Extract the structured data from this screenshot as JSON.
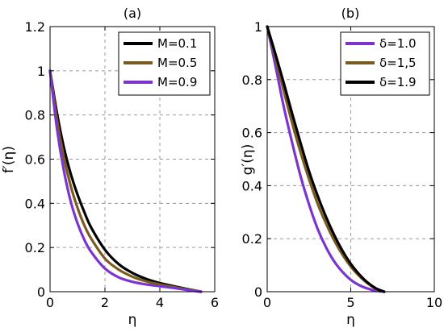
{
  "chart_data": [
    {
      "type": "line",
      "title": "(a)",
      "xlabel": "η",
      "ylabel": "f′(η)",
      "xlim": [
        0,
        6
      ],
      "ylim": [
        0,
        1.2
      ],
      "xticks": [
        0,
        2,
        4,
        6
      ],
      "yticks": [
        0,
        0.2,
        0.4,
        0.6,
        0.8,
        1,
        1.2
      ],
      "xtick_labels": [
        "0",
        "2",
        "4",
        "6"
      ],
      "ytick_labels": [
        "0",
        "0.2",
        "0.4",
        "0.6",
        "0.8",
        "1",
        "1.2"
      ],
      "grid": true,
      "legend_position": "top-right",
      "series": [
        {
          "name": "M=0.1",
          "color": "#000000",
          "x": [
            0,
            0.25,
            0.5,
            0.75,
            1.0,
            1.25,
            1.5,
            2.0,
            2.5,
            3.0,
            3.5,
            4.0,
            4.5,
            5.0,
            5.5
          ],
          "y": [
            1.0,
            0.81,
            0.655,
            0.535,
            0.44,
            0.36,
            0.29,
            0.19,
            0.125,
            0.085,
            0.058,
            0.039,
            0.025,
            0.012,
            0.0
          ]
        },
        {
          "name": "M=0.5",
          "color": "#7a5a1e",
          "x": [
            0,
            0.25,
            0.5,
            0.75,
            1.0,
            1.25,
            1.5,
            2.0,
            2.5,
            3.0,
            3.5,
            4.0,
            4.5,
            5.0,
            5.5
          ],
          "y": [
            1.0,
            0.78,
            0.61,
            0.48,
            0.38,
            0.3,
            0.24,
            0.15,
            0.1,
            0.068,
            0.047,
            0.033,
            0.021,
            0.01,
            0.0
          ]
        },
        {
          "name": "M=0.9",
          "color": "#7b35cc",
          "x": [
            0,
            0.25,
            0.5,
            0.75,
            1.0,
            1.25,
            1.5,
            2.0,
            2.5,
            3.0,
            3.5,
            4.0,
            4.5,
            5.0,
            5.5
          ],
          "y": [
            1.0,
            0.74,
            0.55,
            0.41,
            0.31,
            0.235,
            0.18,
            0.105,
            0.065,
            0.045,
            0.033,
            0.025,
            0.017,
            0.008,
            0.0
          ]
        }
      ]
    },
    {
      "type": "line",
      "title": "(b)",
      "xlabel": "η",
      "ylabel": "g′(η)",
      "xlim": [
        0,
        10
      ],
      "ylim": [
        0,
        1
      ],
      "xticks": [
        0,
        5,
        10
      ],
      "yticks": [
        0,
        0.2,
        0.4,
        0.6,
        0.8,
        1
      ],
      "xtick_labels": [
        "0",
        "5",
        "10"
      ],
      "ytick_labels": [
        "0",
        "0.2",
        "0.4",
        "0.6",
        "0.8",
        "1"
      ],
      "grid": true,
      "legend_position": "top-right",
      "series": [
        {
          "name": "δ=1.0",
          "color": "#7b35cc",
          "x": [
            0,
            0.5,
            1.0,
            1.5,
            2.0,
            2.5,
            3.0,
            3.5,
            4.0,
            4.5,
            5.0,
            5.5,
            6.0,
            6.5,
            7.0
          ],
          "y": [
            1.0,
            0.85,
            0.695,
            0.56,
            0.435,
            0.33,
            0.24,
            0.17,
            0.115,
            0.075,
            0.045,
            0.025,
            0.012,
            0.004,
            0.0
          ]
        },
        {
          "name": "δ=1,5",
          "color": "#7a5a1e",
          "x": [
            0,
            0.5,
            1.0,
            1.5,
            2.0,
            2.5,
            3.0,
            3.5,
            4.0,
            4.5,
            5.0,
            5.5,
            6.0,
            6.5,
            7.0
          ],
          "y": [
            1.0,
            0.88,
            0.755,
            0.635,
            0.525,
            0.425,
            0.335,
            0.26,
            0.195,
            0.14,
            0.095,
            0.06,
            0.032,
            0.012,
            0.0
          ]
        },
        {
          "name": "δ=1.9",
          "color": "#000000",
          "x": [
            0,
            0.5,
            1.0,
            1.5,
            2.0,
            2.5,
            3.0,
            3.5,
            4.0,
            4.5,
            5.0,
            5.5,
            6.0,
            6.5,
            7.0
          ],
          "y": [
            1.0,
            0.895,
            0.785,
            0.67,
            0.56,
            0.455,
            0.365,
            0.285,
            0.215,
            0.155,
            0.105,
            0.066,
            0.035,
            0.013,
            0.0
          ]
        }
      ]
    }
  ]
}
